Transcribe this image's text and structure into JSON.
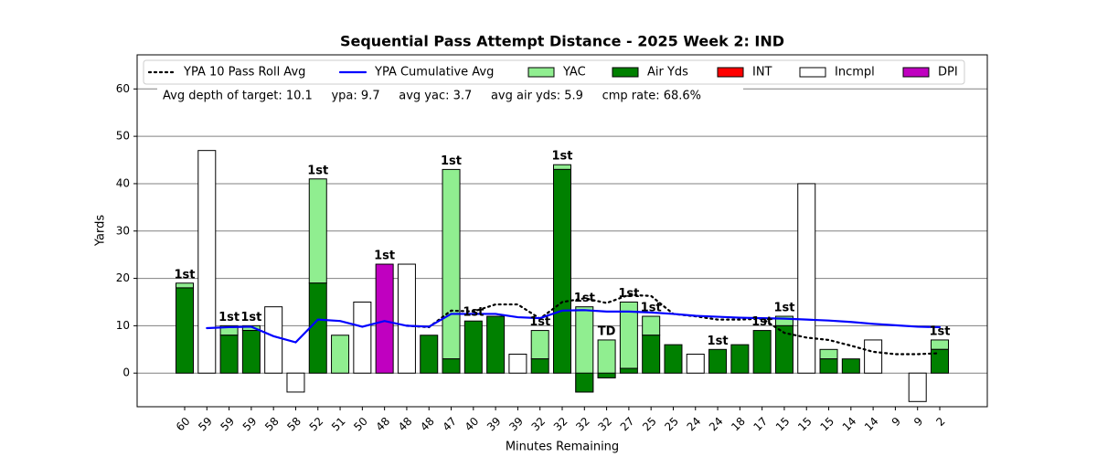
{
  "chart_data": {
    "type": "bar",
    "title": "Sequential Pass Attempt Distance - 2025 Week 2: IND",
    "xlabel": "Minutes Remaining",
    "ylabel": "Yards",
    "annotation": "Avg depth of target: 10.1     ypa: 9.7     avg yac: 3.7     avg air yds: 5.9     cmp rate: 68.6%",
    "categories": [
      "60",
      "59",
      "59",
      "59",
      "58",
      "58",
      "52",
      "51",
      "50",
      "48",
      "48",
      "48",
      "47",
      "40",
      "39",
      "39",
      "32",
      "32",
      "32",
      "32",
      "27",
      "25",
      "25",
      "24",
      "24",
      "18",
      "17",
      "15",
      "15",
      "15",
      "14",
      "14",
      "9",
      "9",
      "2"
    ],
    "ylim": [
      -7.1,
      67.2
    ],
    "yticks": [
      0,
      10,
      20,
      30,
      40,
      50,
      60
    ],
    "grid": true,
    "legend": "top",
    "series": [
      {
        "name": "YPA 10 Pass Roll Avg",
        "type": "line",
        "style": "dotted",
        "color": "#000000",
        "values": [
          null,
          null,
          null,
          null,
          null,
          null,
          null,
          null,
          null,
          null,
          10,
          9.7,
          13.2,
          13,
          14.5,
          14.5,
          11.5,
          15,
          15.8,
          14.8,
          16.5,
          16.3,
          12.5,
          12,
          11.3,
          11.3,
          11.5,
          8.5,
          7.5,
          7,
          5.8,
          4.5,
          4,
          4,
          4.2
        ]
      },
      {
        "name": "YPA Cumulative Avg",
        "type": "line",
        "style": "solid",
        "color": "#0000ff",
        "values": [
          null,
          9.5,
          9.7,
          9.8,
          7.8,
          6.5,
          11.3,
          11,
          9.8,
          11,
          10,
          9.8,
          12.5,
          12.5,
          12.5,
          11.8,
          11.6,
          13.2,
          13.3,
          13,
          13,
          12.8,
          12.5,
          12.1,
          11.9,
          11.7,
          11.6,
          11.5,
          11.3,
          11.1,
          10.8,
          10.4,
          10.1,
          9.8,
          9.7
        ]
      },
      {
        "name": "YAC",
        "type": "bar",
        "color": "#90ee90",
        "values": [
          1,
          null,
          2,
          1,
          null,
          null,
          22,
          8,
          null,
          null,
          null,
          0,
          40,
          null,
          null,
          null,
          6,
          1,
          18,
          8,
          14,
          4,
          null,
          null,
          null,
          null,
          null,
          2,
          null,
          2,
          null,
          null,
          null,
          null,
          2
        ]
      },
      {
        "name": "Air Yds",
        "type": "bar",
        "color": "#008000",
        "values": [
          18,
          null,
          8,
          9,
          null,
          null,
          19,
          0,
          null,
          null,
          null,
          8,
          3,
          11,
          12,
          null,
          3,
          43,
          -4,
          -1,
          1,
          8,
          6,
          null,
          5,
          6,
          9,
          10,
          null,
          3,
          3,
          null,
          null,
          null,
          5
        ]
      },
      {
        "name": "INT",
        "type": "bar",
        "color": "#ff0000",
        "values": [
          null,
          null,
          null,
          null,
          null,
          null,
          null,
          null,
          null,
          null,
          null,
          null,
          null,
          null,
          null,
          null,
          null,
          null,
          null,
          null,
          null,
          null,
          null,
          null,
          null,
          null,
          null,
          null,
          null,
          null,
          null,
          null,
          null,
          null,
          null
        ]
      },
      {
        "name": "Incmpl",
        "type": "bar",
        "color": "#ffffff",
        "values": [
          null,
          47,
          null,
          null,
          14,
          -4,
          null,
          null,
          15,
          null,
          23,
          null,
          null,
          null,
          null,
          4,
          null,
          null,
          null,
          null,
          null,
          null,
          null,
          4,
          null,
          null,
          null,
          null,
          40,
          null,
          null,
          7,
          0,
          -6,
          null
        ]
      },
      {
        "name": "DPI",
        "type": "bar",
        "color": "#c000c0",
        "values": [
          null,
          null,
          null,
          null,
          null,
          null,
          null,
          null,
          null,
          23,
          null,
          null,
          null,
          null,
          null,
          null,
          null,
          null,
          null,
          null,
          null,
          null,
          null,
          null,
          null,
          null,
          null,
          null,
          null,
          null,
          null,
          null,
          null,
          null,
          null
        ]
      }
    ],
    "bar_labels": [
      "1st",
      null,
      "1st",
      "1st",
      null,
      null,
      "1st",
      null,
      null,
      "1st",
      null,
      null,
      "1st",
      "1st",
      null,
      null,
      "1st",
      "1st",
      "1st",
      "TD",
      "1st",
      "1st",
      null,
      null,
      "1st",
      null,
      "1st",
      "1st",
      null,
      null,
      null,
      null,
      null,
      null,
      "1st"
    ]
  }
}
